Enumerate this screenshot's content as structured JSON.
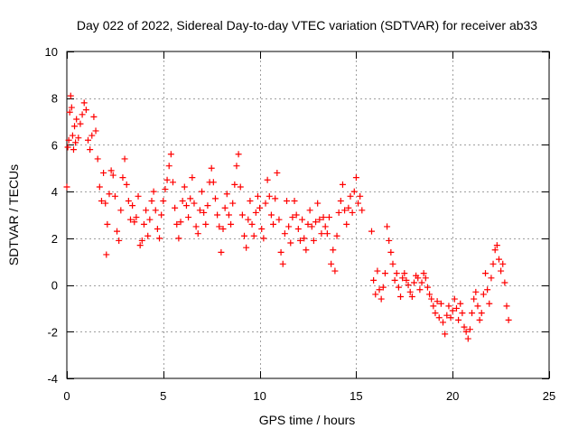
{
  "chart_data": {
    "type": "scatter",
    "title": "Day 022 of 2022, Sidereal Day-to-day VTEC variation (SDTVAR) for receiver ab33",
    "xlabel": "GPS time / hours",
    "ylabel": "SDTVAR / TECUs",
    "xlim": [
      0,
      25
    ],
    "ylim": [
      -4,
      10
    ],
    "xticks": [
      0,
      5,
      10,
      15,
      20,
      25
    ],
    "yticks": [
      -4,
      -2,
      0,
      2,
      4,
      6,
      8,
      10
    ],
    "xtick_labels": [
      "0",
      "5",
      "10",
      "15",
      "20",
      "25"
    ],
    "ytick_labels": [
      "-4",
      "-2",
      "0",
      "2",
      "4",
      "6",
      "8",
      "10"
    ],
    "grid": true,
    "marker": "+",
    "color": "#ff0000",
    "series": [
      {
        "name": "SDTVAR",
        "points": [
          [
            0.0,
            4.2
          ],
          [
            0.05,
            5.9
          ],
          [
            0.1,
            6.2
          ],
          [
            0.15,
            7.4
          ],
          [
            0.2,
            8.1
          ],
          [
            0.25,
            7.6
          ],
          [
            0.3,
            6.4
          ],
          [
            0.35,
            5.8
          ],
          [
            0.4,
            6.8
          ],
          [
            0.45,
            6.1
          ],
          [
            0.5,
            7.1
          ],
          [
            0.6,
            6.3
          ],
          [
            0.7,
            6.9
          ],
          [
            0.8,
            7.3
          ],
          [
            0.9,
            7.8
          ],
          [
            1.0,
            7.5
          ],
          [
            1.1,
            6.2
          ],
          [
            1.2,
            5.8
          ],
          [
            1.3,
            6.4
          ],
          [
            1.4,
            7.2
          ],
          [
            1.5,
            6.6
          ],
          [
            1.6,
            5.4
          ],
          [
            1.7,
            4.2
          ],
          [
            1.8,
            3.6
          ],
          [
            1.9,
            4.8
          ],
          [
            2.0,
            3.5
          ],
          [
            2.05,
            1.3
          ],
          [
            2.1,
            2.6
          ],
          [
            2.2,
            3.9
          ],
          [
            2.3,
            4.9
          ],
          [
            2.4,
            4.7
          ],
          [
            2.5,
            3.8
          ],
          [
            2.6,
            2.3
          ],
          [
            2.7,
            1.9
          ],
          [
            2.8,
            3.2
          ],
          [
            2.9,
            4.6
          ],
          [
            3.0,
            5.4
          ],
          [
            3.1,
            4.3
          ],
          [
            3.2,
            3.6
          ],
          [
            3.3,
            2.8
          ],
          [
            3.4,
            3.4
          ],
          [
            3.5,
            2.7
          ],
          [
            3.6,
            2.9
          ],
          [
            3.7,
            3.8
          ],
          [
            3.8,
            1.7
          ],
          [
            3.9,
            1.9
          ],
          [
            4.0,
            2.6
          ],
          [
            4.1,
            3.2
          ],
          [
            4.2,
            2.1
          ],
          [
            4.3,
            2.8
          ],
          [
            4.4,
            3.6
          ],
          [
            4.5,
            4.0
          ],
          [
            4.6,
            3.2
          ],
          [
            4.7,
            2.4
          ],
          [
            4.8,
            2.0
          ],
          [
            4.9,
            3.0
          ],
          [
            5.0,
            3.6
          ],
          [
            5.1,
            4.1
          ],
          [
            5.2,
            4.5
          ],
          [
            5.3,
            5.1
          ],
          [
            5.4,
            5.6
          ],
          [
            5.5,
            4.4
          ],
          [
            5.6,
            3.3
          ],
          [
            5.7,
            2.6
          ],
          [
            5.8,
            2.0
          ],
          [
            5.9,
            2.7
          ],
          [
            6.0,
            3.6
          ],
          [
            6.1,
            4.2
          ],
          [
            6.2,
            3.4
          ],
          [
            6.3,
            2.9
          ],
          [
            6.4,
            3.7
          ],
          [
            6.5,
            4.6
          ],
          [
            6.6,
            3.5
          ],
          [
            6.7,
            2.5
          ],
          [
            6.8,
            2.2
          ],
          [
            6.9,
            3.2
          ],
          [
            7.0,
            4.0
          ],
          [
            7.1,
            3.1
          ],
          [
            7.2,
            2.6
          ],
          [
            7.3,
            3.4
          ],
          [
            7.4,
            4.4
          ],
          [
            7.5,
            5.0
          ],
          [
            7.6,
            4.4
          ],
          [
            7.7,
            3.7
          ],
          [
            7.8,
            3.0
          ],
          [
            7.9,
            2.5
          ],
          [
            8.0,
            1.4
          ],
          [
            8.1,
            2.4
          ],
          [
            8.2,
            3.3
          ],
          [
            8.3,
            3.9
          ],
          [
            8.4,
            3.0
          ],
          [
            8.5,
            2.6
          ],
          [
            8.6,
            3.5
          ],
          [
            8.7,
            4.3
          ],
          [
            8.8,
            5.1
          ],
          [
            8.9,
            5.6
          ],
          [
            9.0,
            4.2
          ],
          [
            9.1,
            3.0
          ],
          [
            9.2,
            2.1
          ],
          [
            9.3,
            1.6
          ],
          [
            9.4,
            2.8
          ],
          [
            9.5,
            3.6
          ],
          [
            9.6,
            2.6
          ],
          [
            9.7,
            2.1
          ],
          [
            9.8,
            3.1
          ],
          [
            9.9,
            3.8
          ],
          [
            10.0,
            3.3
          ],
          [
            10.1,
            2.4
          ],
          [
            10.2,
            2.0
          ],
          [
            10.3,
            3.5
          ],
          [
            10.4,
            4.5
          ],
          [
            10.5,
            3.8
          ],
          [
            10.6,
            3.0
          ],
          [
            10.7,
            2.6
          ],
          [
            10.8,
            3.7
          ],
          [
            10.9,
            4.8
          ],
          [
            11.0,
            2.8
          ],
          [
            11.1,
            1.4
          ],
          [
            11.2,
            0.9
          ],
          [
            11.3,
            2.2
          ],
          [
            11.4,
            3.6
          ],
          [
            11.5,
            2.5
          ],
          [
            11.6,
            1.8
          ],
          [
            11.7,
            2.9
          ],
          [
            11.8,
            3.6
          ],
          [
            11.9,
            3.0
          ],
          [
            12.0,
            2.4
          ],
          [
            12.1,
            1.9
          ],
          [
            12.2,
            2.8
          ],
          [
            12.3,
            2.0
          ],
          [
            12.4,
            1.5
          ],
          [
            12.5,
            2.6
          ],
          [
            12.6,
            3.2
          ],
          [
            12.7,
            2.5
          ],
          [
            12.8,
            1.9
          ],
          [
            12.9,
            2.7
          ],
          [
            13.0,
            3.5
          ],
          [
            13.1,
            2.8
          ],
          [
            13.2,
            2.2
          ],
          [
            13.3,
            2.9
          ],
          [
            13.4,
            2.5
          ],
          [
            13.5,
            2.2
          ],
          [
            13.6,
            2.9
          ],
          [
            13.7,
            0.9
          ],
          [
            13.8,
            1.5
          ],
          [
            13.9,
            0.6
          ],
          [
            14.0,
            2.1
          ],
          [
            14.1,
            3.1
          ],
          [
            14.2,
            3.6
          ],
          [
            14.3,
            4.3
          ],
          [
            14.4,
            3.2
          ],
          [
            14.5,
            2.6
          ],
          [
            14.6,
            3.3
          ],
          [
            14.7,
            3.8
          ],
          [
            14.8,
            3.1
          ],
          [
            14.9,
            4.0
          ],
          [
            15.0,
            4.6
          ],
          [
            15.1,
            3.5
          ],
          [
            15.2,
            3.8
          ],
          [
            15.3,
            3.2
          ],
          [
            15.8,
            2.3
          ],
          [
            15.9,
            0.2
          ],
          [
            16.0,
            -0.4
          ],
          [
            16.1,
            0.6
          ],
          [
            16.2,
            -0.2
          ],
          [
            16.3,
            -0.6
          ],
          [
            16.4,
            -0.1
          ],
          [
            16.5,
            0.5
          ],
          [
            16.6,
            2.5
          ],
          [
            16.7,
            1.9
          ],
          [
            16.8,
            1.4
          ],
          [
            16.9,
            0.9
          ],
          [
            17.0,
            0.2
          ],
          [
            17.1,
            0.5
          ],
          [
            17.2,
            -0.1
          ],
          [
            17.3,
            -0.5
          ],
          [
            17.4,
            0.3
          ],
          [
            17.5,
            0.5
          ],
          [
            17.6,
            0.2
          ],
          [
            17.7,
            0.0
          ],
          [
            17.8,
            -0.3
          ],
          [
            17.9,
            -0.5
          ],
          [
            18.0,
            0.1
          ],
          [
            18.1,
            0.4
          ],
          [
            18.2,
            0.3
          ],
          [
            18.3,
            -0.2
          ],
          [
            18.4,
            0.1
          ],
          [
            18.5,
            0.5
          ],
          [
            18.6,
            0.3
          ],
          [
            18.7,
            -0.1
          ],
          [
            18.8,
            -0.4
          ],
          [
            18.9,
            -0.6
          ],
          [
            19.0,
            -0.9
          ],
          [
            19.1,
            -1.2
          ],
          [
            19.2,
            -0.7
          ],
          [
            19.3,
            -1.4
          ],
          [
            19.4,
            -0.8
          ],
          [
            19.5,
            -1.6
          ],
          [
            19.6,
            -2.1
          ],
          [
            19.7,
            -1.3
          ],
          [
            19.8,
            -0.9
          ],
          [
            19.9,
            -1.4
          ],
          [
            20.0,
            -1.1
          ],
          [
            20.1,
            -0.6
          ],
          [
            20.2,
            -1.0
          ],
          [
            20.3,
            -1.5
          ],
          [
            20.4,
            -0.8
          ],
          [
            20.5,
            -1.2
          ],
          [
            20.6,
            -1.8
          ],
          [
            20.7,
            -2.0
          ],
          [
            20.8,
            -2.3
          ],
          [
            20.9,
            -1.9
          ],
          [
            21.0,
            -1.2
          ],
          [
            21.1,
            -0.6
          ],
          [
            21.2,
            -0.3
          ],
          [
            21.3,
            -0.9
          ],
          [
            21.4,
            -1.5
          ],
          [
            21.5,
            -1.2
          ],
          [
            21.6,
            -0.4
          ],
          [
            21.7,
            0.5
          ],
          [
            21.8,
            -0.2
          ],
          [
            21.9,
            -0.8
          ],
          [
            22.0,
            0.3
          ],
          [
            22.1,
            0.9
          ],
          [
            22.2,
            1.5
          ],
          [
            22.3,
            1.7
          ],
          [
            22.4,
            1.1
          ],
          [
            22.5,
            0.6
          ],
          [
            22.6,
            0.9
          ],
          [
            22.7,
            0.1
          ],
          [
            22.8,
            -0.9
          ],
          [
            22.9,
            -1.5
          ]
        ]
      }
    ]
  }
}
